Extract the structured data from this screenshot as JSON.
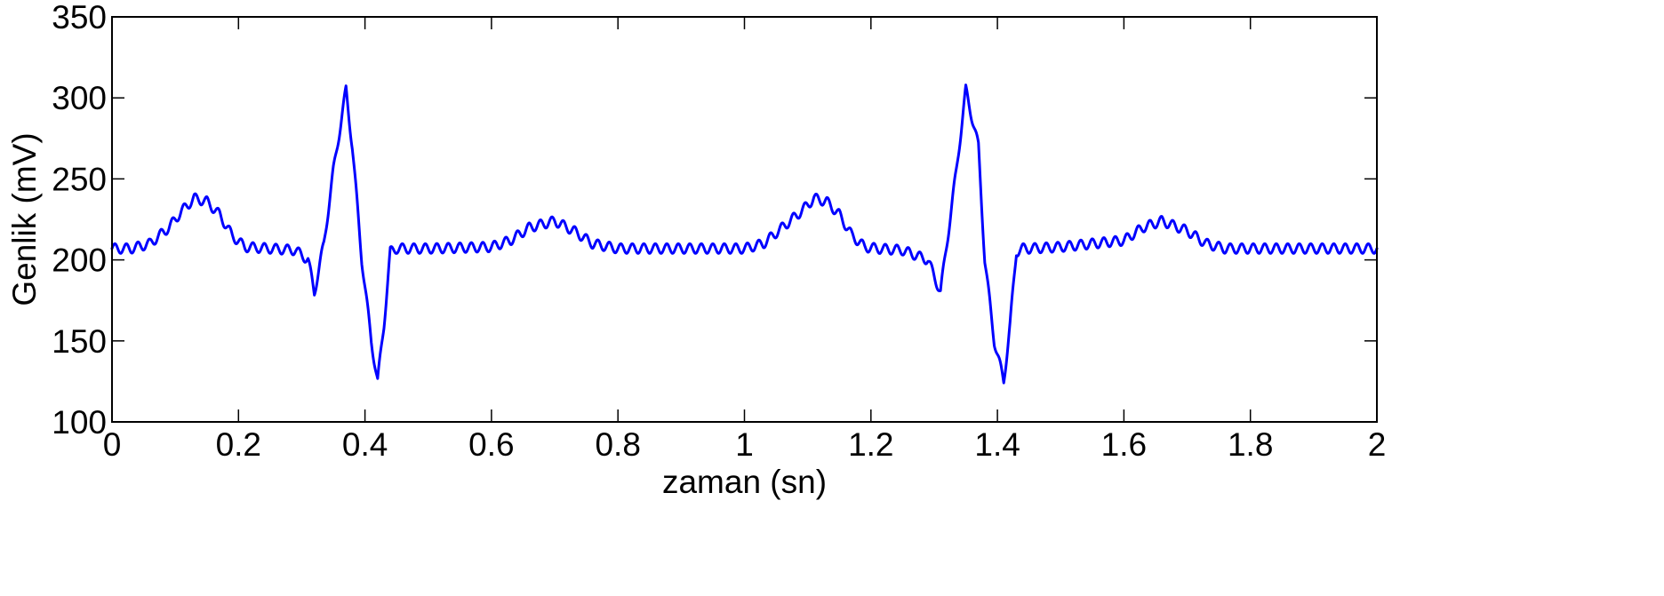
{
  "chart_data": {
    "type": "line",
    "xlabel": "zaman (sn)",
    "ylabel": "Genlik (mV)",
    "xlim": [
      0,
      2
    ],
    "ylim": [
      100,
      350
    ],
    "xticks": [
      0,
      0.2,
      0.4,
      0.6,
      0.8,
      1,
      1.2,
      1.4,
      1.6,
      1.8,
      2
    ],
    "xtick_labels": [
      "0",
      "0.2",
      "0.4",
      "0.6",
      "0.8",
      "1",
      "1.2",
      "1.4",
      "1.6",
      "1.8",
      "2"
    ],
    "yticks": [
      100,
      150,
      200,
      250,
      300,
      350
    ],
    "ytick_labels": [
      "100",
      "150",
      "200",
      "250",
      "300",
      "350"
    ],
    "grid": false,
    "line_color": "#0000ff",
    "series": [
      {
        "x": [
          0,
          0.03,
          0.06,
          0.09,
          0.11,
          0.13,
          0.15,
          0.17,
          0.19,
          0.21,
          0.25,
          0.29,
          0.31,
          0.32,
          0.335,
          0.35,
          0.37,
          0.38,
          0.395,
          0.41,
          0.42,
          0.43,
          0.44,
          0.45,
          0.5,
          0.6,
          0.63,
          0.66,
          0.7,
          0.73,
          0.76,
          0.8,
          0.9,
          1.0,
          1.03,
          1.06,
          1.09,
          1.11,
          1.13,
          1.15,
          1.17,
          1.19,
          1.21,
          1.25,
          1.29,
          1.31,
          1.32,
          1.335,
          1.35,
          1.37,
          1.38,
          1.395,
          1.41,
          1.42,
          1.43,
          1.44,
          1.45,
          1.5,
          1.6,
          1.63,
          1.66,
          1.7,
          1.73,
          1.76,
          1.8,
          1.9,
          2.0
        ],
        "y": [
          207,
          207,
          210,
          220,
          230,
          238,
          236,
          228,
          215,
          208,
          207,
          206,
          200,
          180,
          210,
          255,
          305,
          270,
          200,
          150,
          125,
          160,
          205,
          207,
          207,
          208,
          212,
          220,
          224,
          218,
          210,
          207,
          207,
          207,
          210,
          220,
          230,
          238,
          236,
          228,
          215,
          208,
          207,
          206,
          200,
          180,
          210,
          255,
          305,
          270,
          200,
          150,
          125,
          160,
          205,
          207,
          207,
          208,
          212,
          220,
          224,
          218,
          210,
          207,
          207,
          207,
          207
        ],
        "ripple_mV": 3,
        "ripple_hz": 55
      }
    ]
  }
}
